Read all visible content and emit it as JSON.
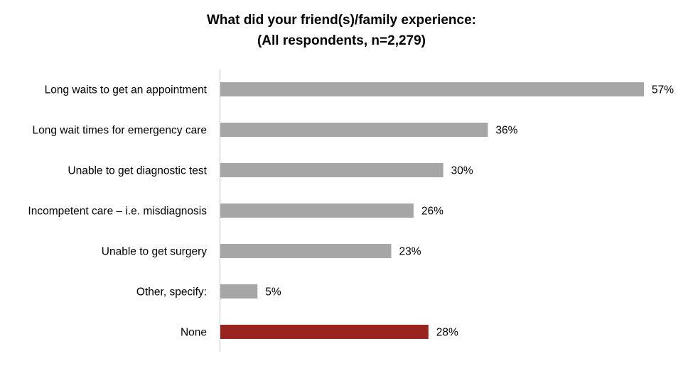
{
  "chart_data": {
    "type": "bar",
    "orientation": "horizontal",
    "title_line1": "What did your friend(s)/family experience:",
    "title_line2": "(All respondents, n=2,279)",
    "categories": [
      "Long waits to get an appointment",
      "Long wait times for emergency care",
      "Unable to get diagnostic test",
      "Incompetent care – i.e. misdiagnosis",
      "Unable to get surgery",
      "Other, specify:",
      "None"
    ],
    "values": [
      57,
      36,
      30,
      26,
      23,
      5,
      28
    ],
    "value_labels": [
      "57%",
      "36%",
      "30%",
      "26%",
      "23%",
      "5%",
      "28%"
    ],
    "bar_colors": [
      "#a6a6a6",
      "#a6a6a6",
      "#a6a6a6",
      "#a6a6a6",
      "#a6a6a6",
      "#a6a6a6",
      "#98231f"
    ],
    "xlim": [
      0,
      57
    ],
    "grid": false,
    "legend": "none"
  }
}
